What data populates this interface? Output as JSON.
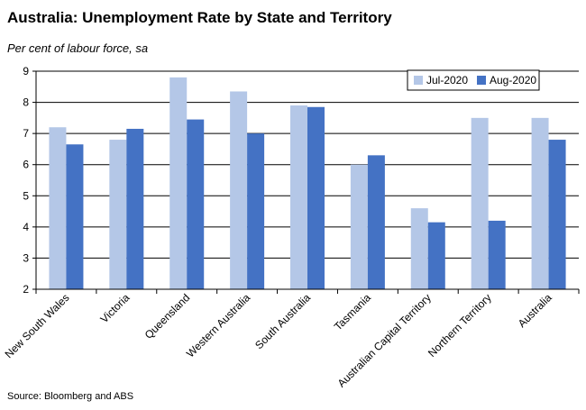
{
  "title": "Australia: Unemployment Rate by State and Territory",
  "subtitle": "Per cent of labour force, sa",
  "source": "Source: Bloomberg and ABS",
  "chart_data": {
    "type": "bar",
    "categories": [
      "New South Wales",
      "Victoria",
      "Queensland",
      "Western Australia",
      "South Australia",
      "Tasmania",
      "Australian Capital Territory",
      "Northern Territory",
      "Australia"
    ],
    "series": [
      {
        "name": "Jul-2020",
        "color": "#b4c7e7",
        "values": [
          7.2,
          6.8,
          8.8,
          8.35,
          7.9,
          6.0,
          4.6,
          7.5,
          7.5
        ]
      },
      {
        "name": "Aug-2020",
        "color": "#4472c4",
        "values": [
          6.65,
          7.15,
          7.45,
          7.0,
          7.85,
          6.3,
          4.15,
          4.2,
          6.8
        ]
      }
    ],
    "ylim": [
      2,
      9
    ],
    "yticks": [
      2,
      3,
      4,
      5,
      6,
      7,
      8,
      9
    ],
    "grid": true,
    "legend": "top-right"
  }
}
